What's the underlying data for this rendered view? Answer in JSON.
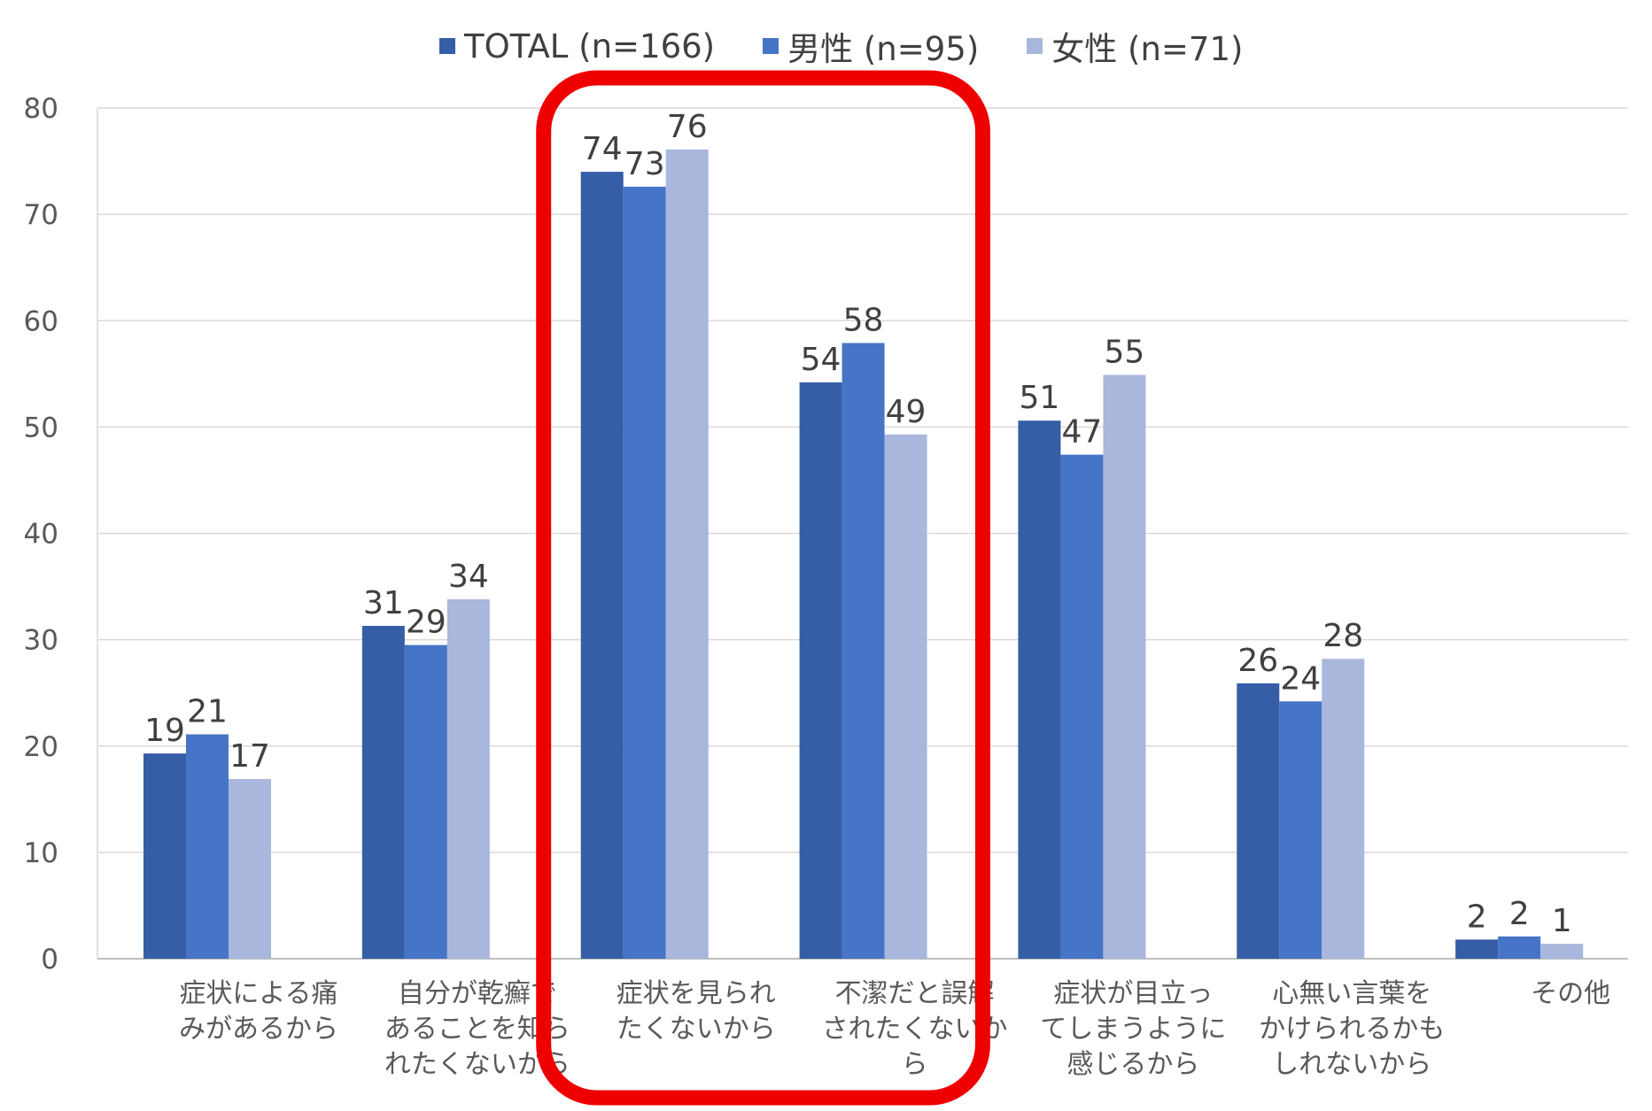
{
  "chart_data": {
    "type": "bar",
    "categories": [
      [
        "症状による痛",
        "みがあるから"
      ],
      [
        "自分が乾癬で",
        "あることを知ら",
        "れたくないから"
      ],
      [
        "症状を見られ",
        "たくないから"
      ],
      [
        "不潔だと誤解",
        "されたくないか",
        "ら"
      ],
      [
        "症状が目立っ",
        "てしまうように",
        "感じるから"
      ],
      [
        "心無い言葉を",
        "かけられるかも",
        "しれないから"
      ],
      [
        "その他"
      ]
    ],
    "series": [
      {
        "name": "TOTAL (n=166)",
        "color": "#365ea6",
        "values": [
          19,
          31,
          74,
          54,
          51,
          26,
          2
        ],
        "plot_values": [
          19.3,
          31.3,
          74,
          54.2,
          50.6,
          25.9,
          1.8
        ]
      },
      {
        "name": "男性 (n=95)",
        "color": "#4674c6",
        "values": [
          21,
          29,
          73,
          58,
          47,
          24,
          2
        ],
        "plot_values": [
          21.1,
          29.5,
          72.6,
          57.9,
          47.4,
          24.2,
          2.1
        ]
      },
      {
        "name": "女性 (n=71)",
        "color": "#a9b7dd",
        "values": [
          17,
          34,
          76,
          49,
          55,
          28,
          1
        ],
        "plot_values": [
          16.9,
          33.8,
          76.1,
          49.3,
          54.9,
          28.2,
          1.4
        ]
      }
    ],
    "ylim": [
      0,
      80
    ],
    "yticks": [
      0,
      10,
      20,
      30,
      40,
      50,
      60,
      70,
      80
    ],
    "grid": true,
    "legend": "top-center",
    "highlight": {
      "categories": [
        2,
        3
      ],
      "color": "#ee0000"
    }
  }
}
